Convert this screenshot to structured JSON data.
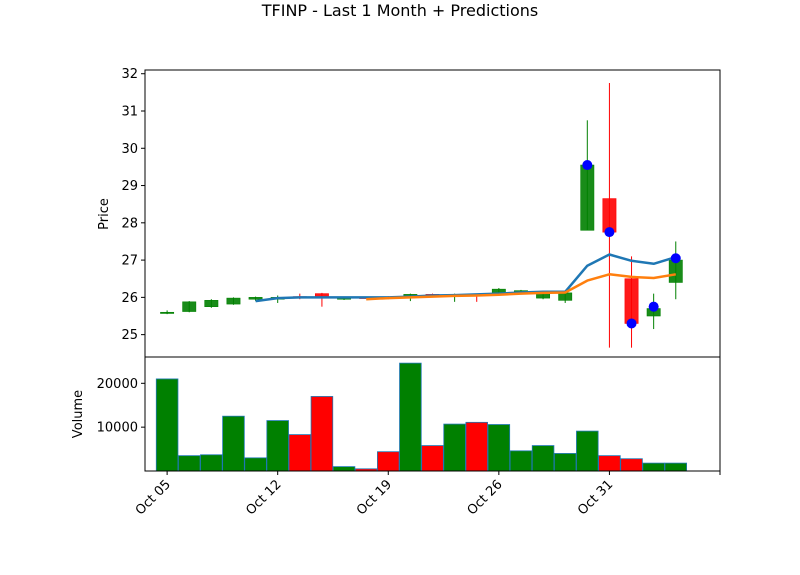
{
  "chart_data": {
    "type": "candlestick",
    "title": "TFINP - Last 1 Month + Predictions",
    "price_panel": {
      "ylabel": "Price",
      "ylim": [
        24.4,
        32.1
      ],
      "yticks": [
        25,
        26,
        27,
        28,
        29,
        30,
        31,
        32
      ]
    },
    "volume_panel": {
      "ylabel": "Volume",
      "ylim": [
        0,
        26000
      ],
      "yticks": [
        10000,
        20000
      ],
      "ytick_labels": [
        "10000",
        "20000"
      ]
    },
    "xlim": [
      -1.0,
      25.0
    ],
    "x_ticks": [
      {
        "pos": 0,
        "label": "Oct 05"
      },
      {
        "pos": 5,
        "label": "Oct 12"
      },
      {
        "pos": 10,
        "label": "Oct 19"
      },
      {
        "pos": 15,
        "label": "Oct 26"
      },
      {
        "pos": 20,
        "label": "Oct 31"
      },
      {
        "pos": 25,
        "label": ""
      }
    ],
    "candles": [
      {
        "open": 25.6,
        "high": 25.65,
        "low": 25.55,
        "close": 25.6,
        "volume": 21000
      },
      {
        "open": 25.62,
        "high": 25.9,
        "low": 25.6,
        "close": 25.88,
        "volume": 3500
      },
      {
        "open": 25.75,
        "high": 25.95,
        "low": 25.72,
        "close": 25.92,
        "volume": 3700
      },
      {
        "open": 25.82,
        "high": 26.0,
        "low": 25.8,
        "close": 25.98,
        "volume": 12500
      },
      {
        "open": 25.95,
        "high": 26.02,
        "low": 25.9,
        "close": 26.0,
        "volume": 3000
      },
      {
        "open": 25.95,
        "high": 26.05,
        "low": 25.85,
        "close": 26.0,
        "volume": 11500
      },
      {
        "open": 26.02,
        "high": 26.1,
        "low": 25.95,
        "close": 25.98,
        "volume": 8300
      },
      {
        "open": 26.1,
        "high": 26.12,
        "low": 25.75,
        "close": 26.0,
        "volume": 17000
      },
      {
        "open": 25.95,
        "high": 26.0,
        "low": 25.93,
        "close": 25.99,
        "volume": 1000
      },
      {
        "open": 26.0,
        "high": 26.02,
        "low": 25.97,
        "close": 25.99,
        "volume": 500
      },
      {
        "open": 26.0,
        "high": 26.03,
        "low": 25.95,
        "close": 25.98,
        "volume": 4400
      },
      {
        "open": 26.0,
        "high": 26.1,
        "low": 25.9,
        "close": 26.08,
        "volume": 24600
      },
      {
        "open": 26.08,
        "high": 26.1,
        "low": 26.0,
        "close": 26.05,
        "volume": 5800
      },
      {
        "open": 26.05,
        "high": 26.1,
        "low": 25.88,
        "close": 26.08,
        "volume": 10700
      },
      {
        "open": 26.08,
        "high": 26.1,
        "low": 25.88,
        "close": 26.05,
        "volume": 11100
      },
      {
        "open": 26.1,
        "high": 26.25,
        "low": 26.05,
        "close": 26.22,
        "volume": 10600
      },
      {
        "open": 26.12,
        "high": 26.2,
        "low": 26.08,
        "close": 26.18,
        "volume": 4600
      },
      {
        "open": 25.98,
        "high": 26.15,
        "low": 25.95,
        "close": 26.12,
        "volume": 5800
      },
      {
        "open": 25.92,
        "high": 26.15,
        "low": 25.85,
        "close": 26.12,
        "volume": 4000
      },
      {
        "open": 27.8,
        "high": 30.75,
        "low": 27.8,
        "close": 29.55,
        "volume": 9100
      },
      {
        "open": 28.65,
        "high": 31.75,
        "low": 24.65,
        "close": 27.75,
        "volume": 3500
      },
      {
        "open": 26.5,
        "high": 27.1,
        "low": 24.65,
        "close": 25.3,
        "volume": 2800
      },
      {
        "open": 25.5,
        "high": 26.1,
        "low": 25.15,
        "close": 25.7,
        "volume": 1800
      },
      {
        "open": 26.4,
        "high": 27.5,
        "low": 25.95,
        "close": 27.0,
        "volume": 1800
      }
    ],
    "series": [
      {
        "color": "#1f77b4",
        "x": [
          4,
          5,
          6,
          7,
          8,
          9,
          10,
          11,
          12,
          13,
          14,
          15,
          16,
          17,
          18,
          19,
          20,
          21,
          22,
          23
        ],
        "values": [
          25.9,
          25.98,
          26.0,
          26.0,
          26.0,
          26.0,
          26.0,
          26.02,
          26.05,
          26.06,
          26.08,
          26.1,
          26.13,
          26.15,
          26.15,
          26.85,
          27.15,
          26.98,
          26.9,
          27.08
        ]
      },
      {
        "color": "#ff7f0e",
        "x": [
          9,
          10,
          11,
          12,
          13,
          14,
          15,
          16,
          17,
          18,
          19,
          20,
          21,
          22,
          23
        ],
        "values": [
          25.95,
          25.98,
          26.0,
          26.02,
          26.04,
          26.05,
          26.07,
          26.1,
          26.12,
          26.13,
          26.45,
          26.62,
          26.55,
          26.52,
          26.62
        ]
      }
    ],
    "prediction_points": {
      "color": "#0000ff",
      "x": [
        19,
        20,
        21,
        22,
        23
      ],
      "values": [
        29.55,
        27.75,
        25.3,
        25.75,
        27.05
      ]
    },
    "colors": {
      "up": "#008000",
      "down": "#ff0000",
      "edge": "#1f77b4"
    }
  }
}
